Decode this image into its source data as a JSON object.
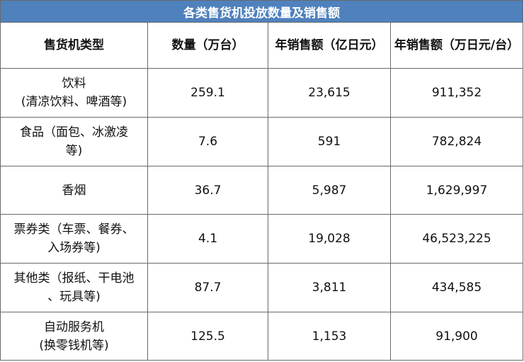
{
  "table": {
    "title": "各类售货机投放数量及销售额",
    "headers": [
      "售货机类型",
      "数量（万台）",
      "年销售额（亿日元）",
      "年销售额（万日元/台）"
    ],
    "rows": [
      {
        "type_line1": "饮料",
        "type_line2": "(清凉饮料、啤酒等)",
        "quantity": "259.1",
        "annual_sales": "23,615",
        "sales_per_unit": "911,352"
      },
      {
        "type_line1": "食品（面包、冰激凌",
        "type_line2": "等)",
        "quantity": "7.6",
        "annual_sales": "591",
        "sales_per_unit": "782,824"
      },
      {
        "type_line1": "香烟",
        "type_line2": "",
        "quantity": "36.7",
        "annual_sales": "5,987",
        "sales_per_unit": "1,629,997"
      },
      {
        "type_line1": "票券类（车票、餐券、",
        "type_line2": "入场券等)",
        "quantity": "4.1",
        "annual_sales": "19,028",
        "sales_per_unit": "46,523,225"
      },
      {
        "type_line1": "其他类（报纸、干电池",
        "type_line2": "、玩具等)",
        "quantity": "87.7",
        "annual_sales": "3,811",
        "sales_per_unit": "434,585"
      },
      {
        "type_line1": "自动服务机",
        "type_line2": "(换零钱机等)",
        "quantity": "125.5",
        "annual_sales": "1,153",
        "sales_per_unit": "91,900"
      }
    ]
  },
  "colors": {
    "title_background": "#4f81bd",
    "title_text": "#ffffff",
    "grid_line": "#6a6a6a"
  }
}
